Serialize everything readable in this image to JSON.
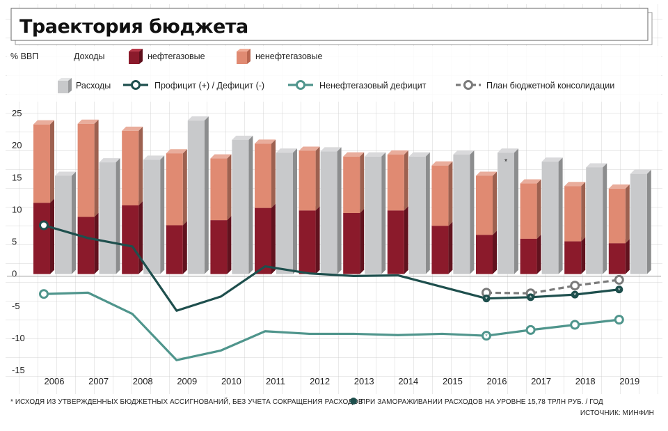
{
  "title": "Траектория бюджета",
  "legend": {
    "unit": "% ВВП",
    "revenue_label": "Доходы",
    "oil_gas": "нефтегазовые",
    "non_oil_gas": "ненефтегазовые",
    "expenses": "Расходы",
    "balance": "Профицит (+) / Дефицит (-)",
    "non_oil_deficit": "Ненефтегазовый дефицит",
    "consolidation": "План бюджетной консолидации"
  },
  "footnote_star": "* ИСХОДЯ ИЗ УТВЕРЖДЕННЫХ БЮДЖЕТНЫХ АССИГНОВАНИЙ, БЕЗ УЧЕТА СОКРАЩЕНИЯ РАСХОДОВ",
  "footnote_freeze": "ПРИ ЗАМОРАЖИВАНИИ РАСХОДОВ НА УРОВНЕ 15,78 ТРЛН РУБ. / ГОД",
  "source": "ИСТОЧНИК: МИНФИН",
  "star_mark": "*",
  "colors": {
    "oil_gas": "#8b1a2b",
    "non_oil_gas": "#e08a72",
    "expenses": "#c8c9cb",
    "balance": "#1e4f4d",
    "non_oil_deficit": "#4f958c",
    "consolidation": "#7a7a7a",
    "grid": "#bbbbbb"
  },
  "chart_data": {
    "type": "bar",
    "categories": [
      "2006",
      "2007",
      "2008",
      "2009",
      "2010",
      "2011",
      "2012",
      "2013",
      "2014",
      "2015",
      "2016",
      "2017",
      "2018",
      "2019"
    ],
    "ylim": [
      -15,
      25
    ],
    "yticks": [
      25,
      20,
      15,
      10,
      5,
      0,
      -5,
      -10,
      -15
    ],
    "ytick_labels": [
      "25",
      "20",
      "15",
      "10",
      "5",
      "0",
      "-5",
      "-10",
      "-15"
    ],
    "grid": true,
    "series": [
      {
        "name": "нефтегазовые",
        "kind": "stacked-bar",
        "values": [
          11.1,
          8.9,
          10.7,
          7.6,
          8.4,
          10.3,
          9.9,
          9.5,
          9.9,
          7.5,
          6.1,
          5.5,
          5.1,
          4.8
        ]
      },
      {
        "name": "ненефтегазовые",
        "kind": "stacked-bar",
        "values": [
          12.2,
          14.5,
          11.6,
          11.2,
          9.6,
          10.0,
          9.3,
          8.8,
          8.7,
          9.4,
          9.2,
          8.6,
          8.6,
          8.5
        ]
      },
      {
        "name": "Расходы",
        "kind": "bar",
        "values": [
          15.3,
          17.4,
          17.8,
          23.9,
          20.9,
          18.9,
          19.1,
          18.3,
          18.3,
          18.6,
          18.9,
          17.5,
          16.6,
          15.6
        ]
      },
      {
        "name": "Профицит (+) / Дефицит (-)",
        "kind": "line",
        "values": [
          7.6,
          5.6,
          4.3,
          -5.7,
          -3.5,
          1.2,
          0.1,
          -0.3,
          -0.2,
          null,
          -3.8,
          -3.6,
          -3.2,
          -2.4
        ]
      },
      {
        "name": "Ненефтегазовый дефицит",
        "kind": "line",
        "values": [
          -3.1,
          -2.9,
          -6.2,
          -13.4,
          -11.9,
          -8.9,
          -9.3,
          -9.3,
          -9.5,
          -9.3,
          -9.6,
          -8.7,
          -7.9,
          -7.1
        ]
      },
      {
        "name": "План бюджетной консолидации",
        "kind": "dashed-line",
        "x": [
          "2016",
          "2017",
          "2018",
          "2019"
        ],
        "values": [
          -2.9,
          -3.0,
          -1.8,
          -0.9
        ]
      }
    ],
    "markers": {
      "star_on_expenses": "2016",
      "balance_circles": [
        "2006"
      ],
      "balance_freeze_points": [
        "2016",
        "2017",
        "2018",
        "2019"
      ],
      "non_oil_circles": [
        "2006",
        "2016",
        "2017",
        "2018",
        "2019"
      ],
      "non_oil_star": "2016"
    }
  }
}
